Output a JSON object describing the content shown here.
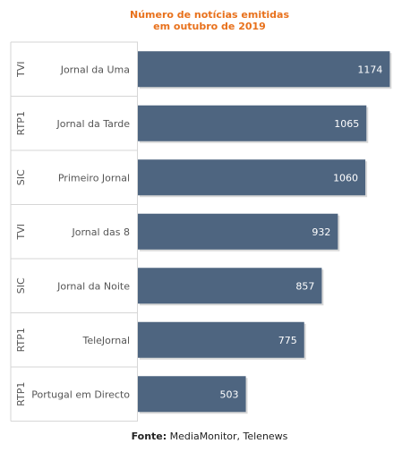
{
  "chart_data": {
    "type": "bar",
    "orientation": "horizontal",
    "title": "Número de notícias emitidas\nem outubro de 2019",
    "groups": [
      "TVI",
      "RTP1",
      "SIC",
      "TVI",
      "SIC",
      "RTP1",
      "RTP1"
    ],
    "categories": [
      "Jornal da Uma",
      "Jornal da Tarde",
      "Primeiro Jornal",
      "Jornal das 8",
      "Jornal da Noite",
      "TeleJornal",
      "Portugal em Directo"
    ],
    "values": [
      1174,
      1065,
      1060,
      932,
      857,
      775,
      503
    ],
    "xlim": [
      0,
      1260
    ],
    "grid": false,
    "legend": "none"
  },
  "colors": {
    "bar": "#4e6580",
    "title": "#e8711c",
    "value_label": "#ffffff",
    "axis_text": "#555555",
    "gridline": "#d6d6d6"
  },
  "source": {
    "label": "Fonte:",
    "text": "MediaMonitor, Telenews"
  }
}
